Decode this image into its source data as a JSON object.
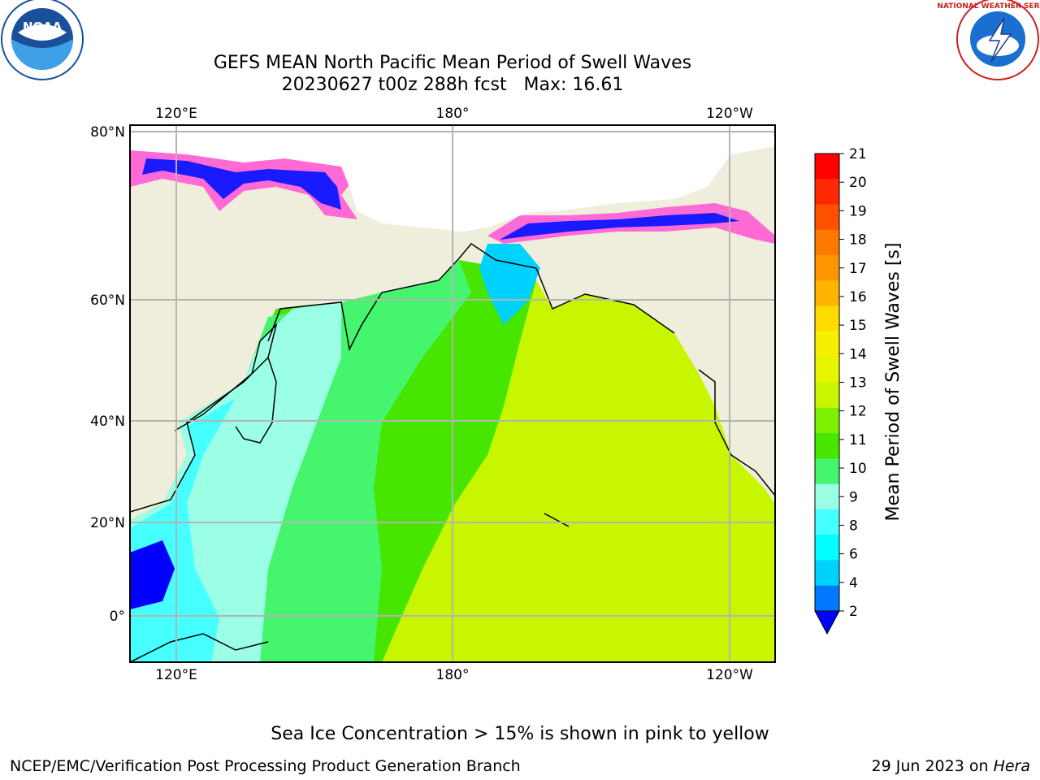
{
  "title": {
    "line1": "GEFS MEAN North Pacific Mean Period of Swell Waves",
    "line2": "20230627 t00z 288h fcst   Max: 16.61"
  },
  "logos": {
    "left": {
      "text": "NOAA",
      "icon": "noaa-logo"
    },
    "right": {
      "text": "NATIONAL WEATHER SERVICE",
      "icon": "nws-logo"
    }
  },
  "map": {
    "lon_labels": [
      "120°E",
      "180°",
      "120°W"
    ],
    "lat_labels": [
      "80°N",
      "60°N",
      "40°N",
      "20°N",
      "0°"
    ],
    "colors": {
      "land": "#efeedd",
      "coast": "#000000",
      "grid": "#b4b4b4"
    }
  },
  "colorbar": {
    "label": "Mean Period of Swell Waves [s]",
    "ticks": [
      "21",
      "20",
      "19",
      "18",
      "17",
      "16",
      "15",
      "14",
      "13",
      "12",
      "11",
      "10",
      "9",
      "8",
      "6",
      "4",
      "2"
    ],
    "colors": [
      "#ff0000",
      "#ff2800",
      "#ff5000",
      "#ff7800",
      "#ff9600",
      "#ffb400",
      "#ffdc00",
      "#f5f000",
      "#e6f500",
      "#c8f500",
      "#7df000",
      "#46e600",
      "#46f56e",
      "#9bffe6",
      "#46ffff",
      "#00ffff",
      "#00d2ff",
      "#0078ff"
    ],
    "extend_color": "#0000ff"
  },
  "footer": {
    "ice_note": "Sea Ice Concentration > 15% is shown in pink to yellow",
    "credit": "NCEP/EMC/Verification Post Processing Product Generation Branch",
    "date": "29 Jun 2023 on ",
    "machine": "Hera"
  }
}
